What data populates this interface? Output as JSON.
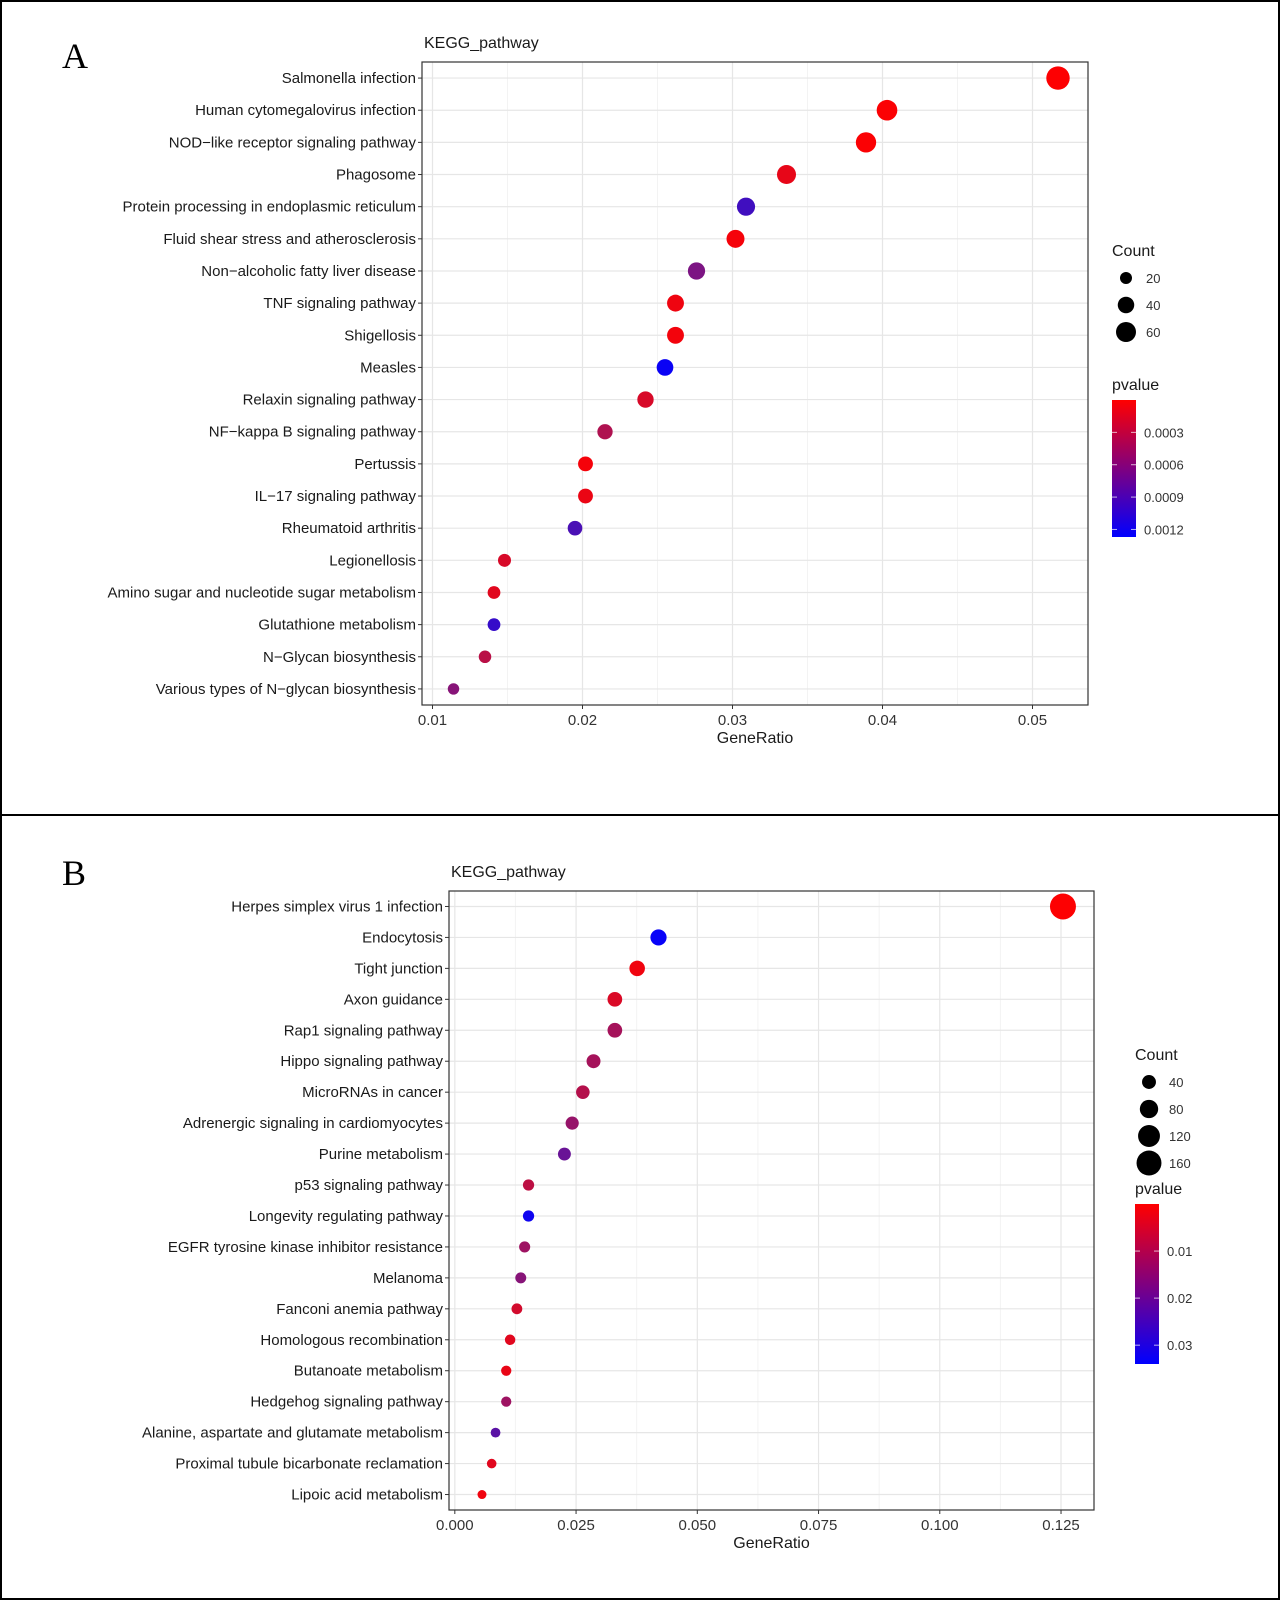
{
  "chart_data": [
    {
      "type": "scatter",
      "panel_label": "A",
      "title": "KEGG_pathway",
      "xlabel": "GeneRatio",
      "ylabel": "",
      "xlim": [
        0.0093,
        0.0537
      ],
      "xticks": [
        0.01,
        0.02,
        0.03,
        0.04,
        0.05
      ],
      "xtick_labels": [
        "0.01",
        "0.02",
        "0.03",
        "0.04",
        "0.05"
      ],
      "grid": true,
      "legend_position": "right",
      "size_legend": {
        "title": "Count",
        "values": [
          20,
          40,
          60
        ],
        "labels": [
          "20",
          "40",
          "60"
        ]
      },
      "color_legend": {
        "title": "pvalue",
        "range": [
          0.0,
          0.00127
        ],
        "ticks": [
          0.0003,
          0.0006,
          0.0009,
          0.0012
        ],
        "labels": [
          "0.0003",
          "0.0006",
          "0.0009",
          "0.0012"
        ],
        "low_color": "#ff0000",
        "high_color": "#0000ff"
      },
      "categories": [
        "Salmonella infection",
        "Human cytomegalovirus infection",
        "NOD−like receptor signaling pathway",
        "Phagosome",
        "Protein processing in endoplasmic reticulum",
        "Fluid shear stress and atherosclerosis",
        "Non−alcoholic fatty liver disease",
        "TNF signaling pathway",
        "Shigellosis",
        "Measles",
        "Relaxin signaling pathway",
        "NF−kappa B signaling pathway",
        "Pertussis",
        "IL−17 signaling pathway",
        "Rheumatoid arthritis",
        "Legionellosis",
        "Amino sugar and nucleotide sugar metabolism",
        "Glutathione metabolism",
        "N−Glycan biosynthesis",
        "Various types of N−glycan biosynthesis"
      ],
      "gene_ratio": [
        0.0517,
        0.0403,
        0.0389,
        0.0336,
        0.0309,
        0.0302,
        0.0276,
        0.0262,
        0.0262,
        0.0255,
        0.0242,
        0.0215,
        0.0202,
        0.0202,
        0.0195,
        0.0148,
        0.0141,
        0.0141,
        0.0135,
        0.0114
      ],
      "count": [
        83,
        64,
        62,
        54,
        49,
        48,
        44,
        42,
        42,
        41,
        39,
        34,
        32,
        32,
        31,
        24,
        23,
        23,
        22,
        18
      ],
      "pvalue": [
        1e-05,
        2e-05,
        2e-05,
        0.00012,
        0.00095,
        5e-05,
        0.00065,
        8e-05,
        6e-05,
        0.00122,
        0.0002,
        0.0004,
        5e-05,
        0.0001,
        0.0009,
        0.0002,
        0.00015,
        0.001,
        0.00035,
        0.0006
      ]
    },
    {
      "type": "scatter",
      "panel_label": "B",
      "title": "KEGG_pathway",
      "xlabel": "GeneRatio",
      "ylabel": "",
      "xlim": [
        -0.0012,
        0.1318
      ],
      "xticks": [
        0.0,
        0.025,
        0.05,
        0.075,
        0.1,
        0.125
      ],
      "xtick_labels": [
        "0.000",
        "0.025",
        "0.050",
        "0.075",
        "0.100",
        "0.125"
      ],
      "grid": true,
      "legend_position": "right",
      "size_legend": {
        "title": "Count",
        "values": [
          40,
          80,
          120,
          160
        ],
        "labels": [
          "40",
          "80",
          "120",
          "160"
        ]
      },
      "color_legend": {
        "title": "pvalue",
        "range": [
          0.0,
          0.034
        ],
        "ticks": [
          0.01,
          0.02,
          0.03
        ],
        "labels": [
          "0.01",
          "0.02",
          "0.03"
        ],
        "low_color": "#ff0000",
        "high_color": "#0000ff"
      },
      "categories": [
        "Herpes simplex virus 1 infection",
        "Endocytosis",
        "Tight junction",
        "Axon guidance",
        "Rap1 signaling pathway",
        "Hippo signaling pathway",
        "MicroRNAs in cancer",
        "Adrenergic signaling in cardiomyocytes",
        "Purine metabolism",
        "p53 signaling pathway",
        "Longevity regulating pathway",
        "EGFR tyrosine kinase inhibitor resistance",
        "Melanoma",
        "Fanconi anemia pathway",
        "Homologous recombination",
        "Butanoate metabolism",
        "Hedgehog signaling pathway",
        "Alanine, aspartate and glutamate metabolism",
        "Proximal tubule bicarbonate reclamation",
        "Lipoic acid metabolism"
      ],
      "gene_ratio": [
        0.1254,
        0.042,
        0.0376,
        0.033,
        0.033,
        0.0286,
        0.0264,
        0.0242,
        0.0226,
        0.0152,
        0.0152,
        0.0144,
        0.0136,
        0.0128,
        0.0114,
        0.0106,
        0.0106,
        0.0084,
        0.0076,
        0.0056
      ],
      "count": [
        175,
        59,
        53,
        46,
        46,
        40,
        37,
        34,
        32,
        21,
        21,
        20,
        19,
        18,
        16,
        15,
        15,
        12,
        11,
        8
      ],
      "pvalue": [
        0.0003,
        0.033,
        0.002,
        0.005,
        0.012,
        0.012,
        0.01,
        0.014,
        0.02,
        0.009,
        0.032,
        0.013,
        0.016,
        0.006,
        0.004,
        0.003,
        0.013,
        0.022,
        0.004,
        0.002
      ]
    }
  ]
}
